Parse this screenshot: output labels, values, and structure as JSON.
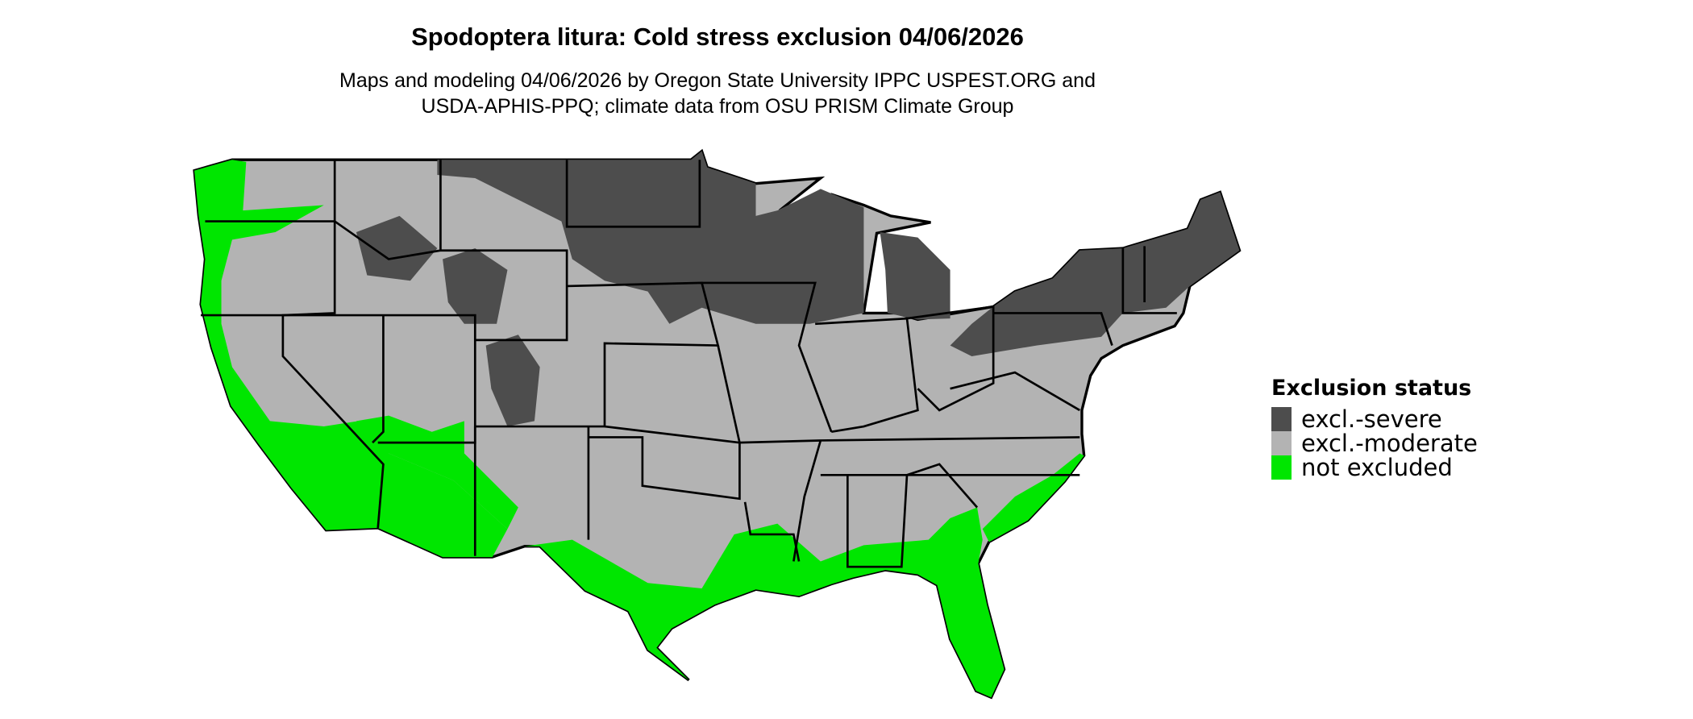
{
  "title": "Spodoptera litura: Cold stress exclusion 04/06/2026",
  "subtitle_line1": "Maps and modeling 04/06/2026 by Oregon State University IPPC USPEST.ORG and",
  "subtitle_line2": "USDA-APHIS-PPQ; climate data from OSU PRISM Climate Group",
  "legend": {
    "title": "Exclusion status",
    "items": [
      {
        "label": "excl.-severe",
        "color": "#4d4d4d"
      },
      {
        "label": "excl.-moderate",
        "color": "#b3b3b3"
      },
      {
        "label": "not excluded",
        "color": "#00e600"
      }
    ]
  },
  "map": {
    "region": "Contiguous United States",
    "border_color": "#000000"
  }
}
